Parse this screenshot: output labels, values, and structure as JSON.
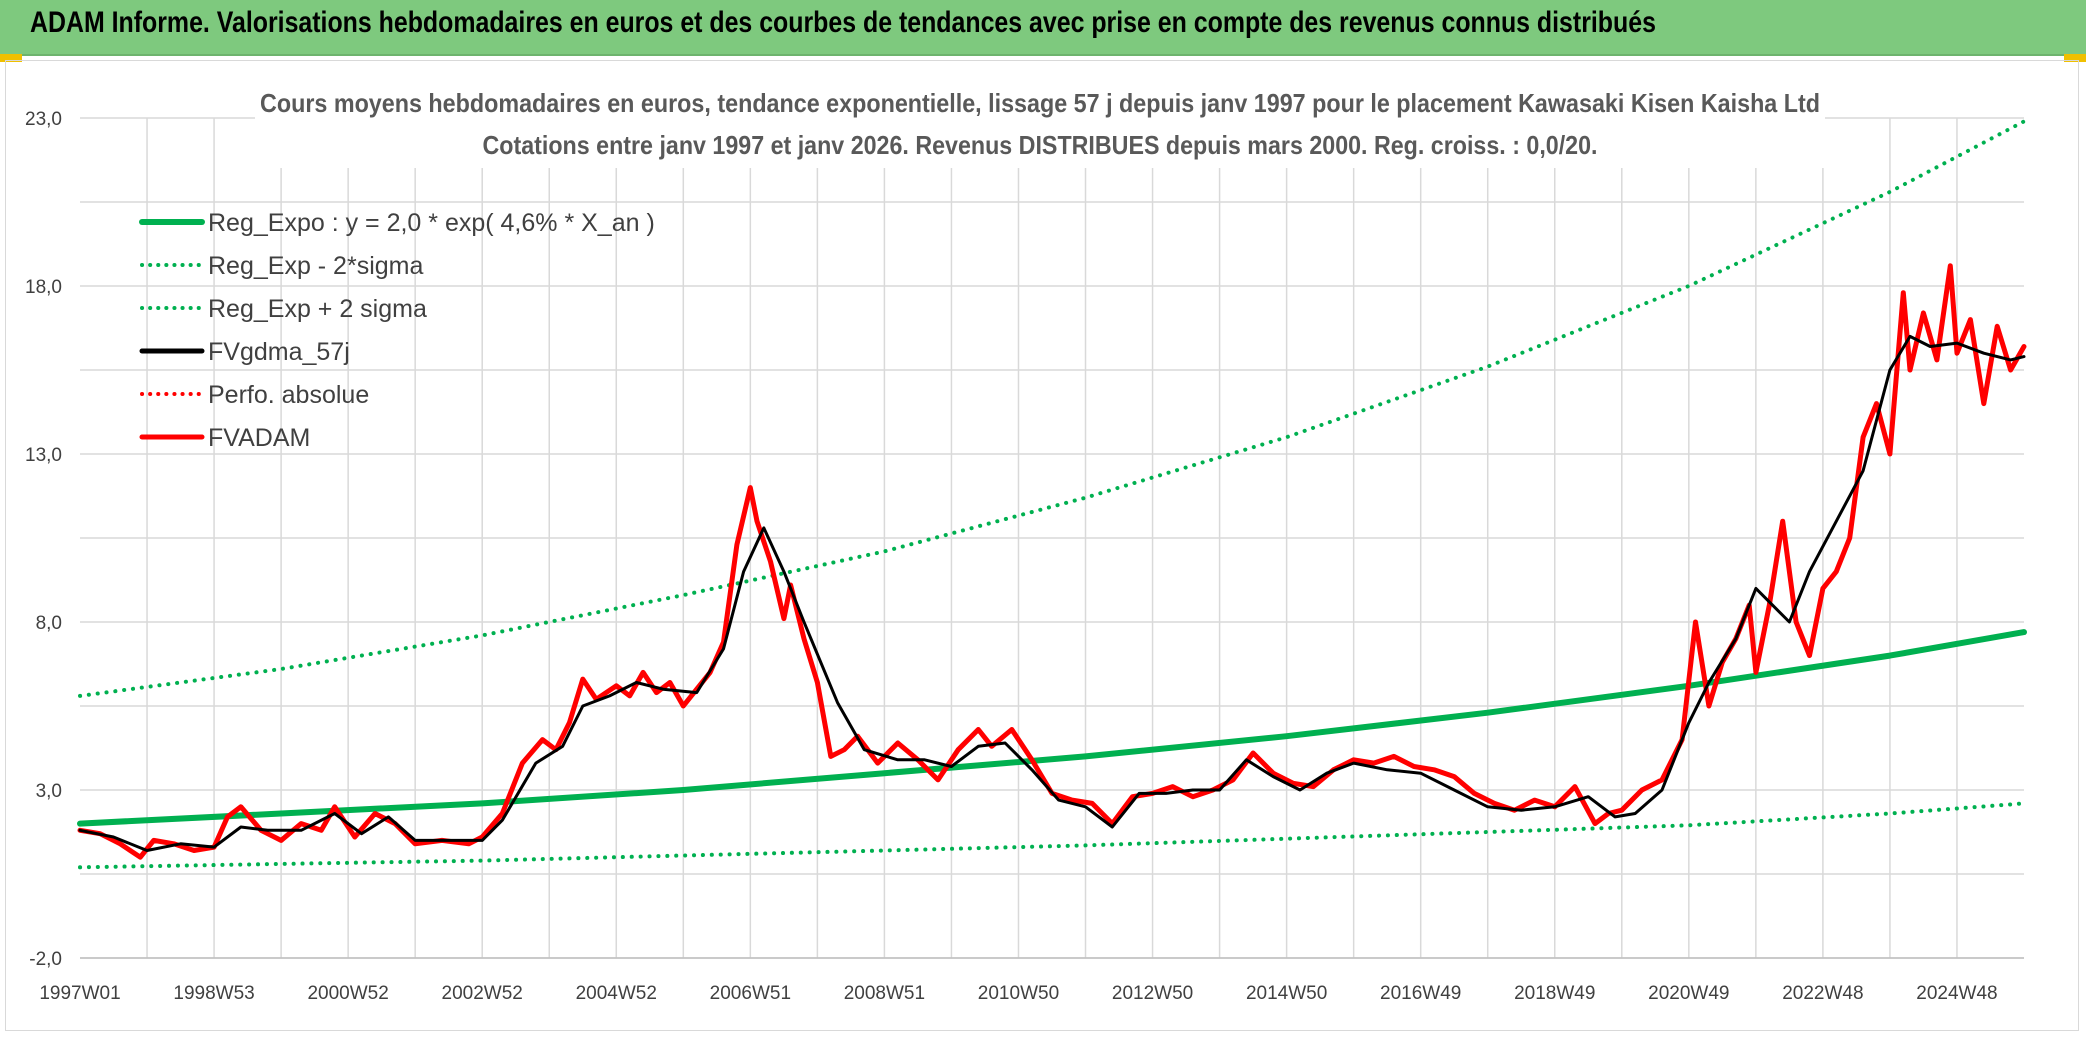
{
  "header": {
    "title": "ADAM Informe. Valorisations hebdomadaires en euros et des courbes de tendances avec prise en compte des revenus connus distribués"
  },
  "chart_data": {
    "type": "line",
    "title": "Cours moyens hebdomadaires en euros, tendance exponentielle, lissage 57 j depuis janv 1997 pour le placement Kawasaki Kisen Kaisha Ltd",
    "subtitle": "Cotations entre janv 1997 et janv 2026. Revenus DISTRIBUES depuis mars 2000. Reg. croiss. : 0,0/20.",
    "xlabel": "",
    "ylabel": "",
    "ylim": [
      -2,
      23
    ],
    "xlim": [
      1997.0,
      2026.0
    ],
    "y_ticks": [
      "-2,0",
      "3,0",
      "8,0",
      "13,0",
      "18,0",
      "23,0"
    ],
    "y_tick_values": [
      -2,
      3,
      8,
      13,
      18,
      23
    ],
    "x_ticks": [
      "1997W01",
      "1998W53",
      "2000W52",
      "2002W52",
      "2004W52",
      "2006W51",
      "2008W51",
      "2010W50",
      "2012W50",
      "2014W50",
      "2016W49",
      "2018W49",
      "2020W49",
      "2022W48",
      "2024W48"
    ],
    "x_tick_values": [
      1997.0,
      1999.0,
      2001.0,
      2003.0,
      2005.0,
      2007.0,
      2009.0,
      2011.0,
      2013.0,
      2015.0,
      2017.0,
      2019.0,
      2021.0,
      2023.0,
      2025.0
    ],
    "grid": true,
    "legend_position": "top-left",
    "series": [
      {
        "name": "Reg_Expo : y = 2,0 * exp( 4,6% *  X_an )",
        "color": "#00b050",
        "style": "solid",
        "width": 6,
        "x": [
          1997.0,
          2000.0,
          2003.0,
          2006.0,
          2009.0,
          2012.0,
          2015.0,
          2018.0,
          2021.0,
          2024.0,
          2026.0
        ],
        "y": [
          2.0,
          2.3,
          2.6,
          3.0,
          3.5,
          4.0,
          4.6,
          5.3,
          6.1,
          7.0,
          7.7
        ]
      },
      {
        "name": "Reg_Exp - 2*sigma",
        "color": "#00b050",
        "style": "dotted",
        "width": 4,
        "x": [
          1997.0,
          2000.0,
          2003.0,
          2006.0,
          2009.0,
          2012.0,
          2015.0,
          2018.0,
          2021.0,
          2024.0,
          2026.0
        ],
        "y": [
          0.7,
          0.8,
          0.9,
          1.05,
          1.2,
          1.35,
          1.55,
          1.75,
          1.95,
          2.3,
          2.6
        ]
      },
      {
        "name": "Reg_Exp + 2 sigma",
        "color": "#00b050",
        "style": "dotted",
        "width": 4,
        "x": [
          1997.0,
          2000.0,
          2003.0,
          2006.0,
          2009.0,
          2012.0,
          2015.0,
          2018.0,
          2021.0,
          2024.0,
          2026.0
        ],
        "y": [
          5.8,
          6.6,
          7.6,
          8.8,
          10.1,
          11.7,
          13.5,
          15.6,
          18.0,
          20.8,
          22.9
        ]
      },
      {
        "name": "FVgdma_57j",
        "color": "#000000",
        "style": "solid",
        "width": 3,
        "x": [
          1997.0,
          1997.5,
          1998.0,
          1998.5,
          1999.0,
          1999.4,
          1999.8,
          2000.3,
          2000.8,
          2001.2,
          2001.6,
          2002.0,
          2002.5,
          2003.0,
          2003.3,
          2003.8,
          2004.2,
          2004.5,
          2004.9,
          2005.3,
          2005.7,
          2006.2,
          2006.6,
          2006.9,
          2007.2,
          2007.5,
          2007.8,
          2008.3,
          2008.7,
          2009.2,
          2009.6,
          2010.0,
          2010.4,
          2010.8,
          2011.2,
          2011.6,
          2012.0,
          2012.4,
          2012.8,
          2013.2,
          2013.6,
          2014.0,
          2014.4,
          2014.8,
          2015.2,
          2015.6,
          2016.0,
          2016.5,
          2017.0,
          2017.5,
          2018.0,
          2018.5,
          2019.0,
          2019.5,
          2019.9,
          2020.2,
          2020.6,
          2021.0,
          2021.3,
          2021.7,
          2022.0,
          2022.5,
          2022.8,
          2023.2,
          2023.6,
          2024.0,
          2024.3,
          2024.6,
          2025.0,
          2025.4,
          2025.8,
          2026.0
        ],
        "y": [
          1.8,
          1.6,
          1.2,
          1.4,
          1.3,
          1.9,
          1.8,
          1.8,
          2.3,
          1.7,
          2.2,
          1.5,
          1.5,
          1.5,
          2.1,
          3.8,
          4.3,
          5.5,
          5.8,
          6.2,
          6.0,
          5.9,
          7.2,
          9.5,
          10.8,
          9.5,
          8.0,
          5.6,
          4.2,
          3.9,
          3.9,
          3.7,
          4.3,
          4.4,
          3.6,
          2.7,
          2.5,
          1.9,
          2.9,
          2.9,
          3.0,
          3.0,
          3.9,
          3.4,
          3.0,
          3.5,
          3.8,
          3.6,
          3.5,
          3.0,
          2.5,
          2.4,
          2.5,
          2.8,
          2.2,
          2.3,
          3.0,
          5.0,
          6.2,
          7.5,
          9.0,
          8.0,
          9.5,
          11.0,
          12.5,
          15.5,
          16.5,
          16.2,
          16.3,
          16.0,
          15.8,
          15.9
        ]
      },
      {
        "name": "Perfo. absolue",
        "color": "#ff0000",
        "style": "dotted",
        "width": 3,
        "x": [],
        "y": []
      },
      {
        "name": "FVADAM",
        "color": "#ff0000",
        "style": "solid",
        "width": 5,
        "x": [
          1997.0,
          1997.3,
          1997.6,
          1997.9,
          1998.1,
          1998.4,
          1998.7,
          1999.0,
          1999.2,
          1999.4,
          1999.7,
          2000.0,
          2000.3,
          2000.6,
          2000.8,
          2001.1,
          2001.4,
          2001.7,
          2002.0,
          2002.4,
          2002.8,
          2003.0,
          2003.3,
          2003.6,
          2003.9,
          2004.1,
          2004.3,
          2004.5,
          2004.7,
          2005.0,
          2005.2,
          2005.4,
          2005.6,
          2005.8,
          2006.0,
          2006.2,
          2006.4,
          2006.6,
          2006.8,
          2007.0,
          2007.1,
          2007.3,
          2007.5,
          2007.6,
          2007.8,
          2008.0,
          2008.2,
          2008.4,
          2008.6,
          2008.9,
          2009.2,
          2009.5,
          2009.8,
          2010.1,
          2010.4,
          2010.6,
          2010.9,
          2011.2,
          2011.5,
          2011.8,
          2012.1,
          2012.4,
          2012.7,
          2013.0,
          2013.3,
          2013.6,
          2013.9,
          2014.2,
          2014.5,
          2014.8,
          2015.1,
          2015.4,
          2015.7,
          2016.0,
          2016.3,
          2016.6,
          2016.9,
          2017.2,
          2017.5,
          2017.8,
          2018.1,
          2018.4,
          2018.7,
          2019.0,
          2019.3,
          2019.6,
          2019.8,
          2020.0,
          2020.3,
          2020.6,
          2020.9,
          2021.1,
          2021.3,
          2021.5,
          2021.7,
          2021.9,
          2022.0,
          2022.2,
          2022.4,
          2022.6,
          2022.8,
          2023.0,
          2023.2,
          2023.4,
          2023.6,
          2023.8,
          2024.0,
          2024.2,
          2024.3,
          2024.5,
          2024.7,
          2024.9,
          2025.0,
          2025.2,
          2025.4,
          2025.6,
          2025.8,
          2026.0
        ],
        "y": [
          1.8,
          1.7,
          1.4,
          1.0,
          1.5,
          1.4,
          1.2,
          1.3,
          2.2,
          2.5,
          1.8,
          1.5,
          2.0,
          1.8,
          2.5,
          1.6,
          2.3,
          2.0,
          1.4,
          1.5,
          1.4,
          1.6,
          2.3,
          3.8,
          4.5,
          4.2,
          5.0,
          6.3,
          5.7,
          6.1,
          5.8,
          6.5,
          5.9,
          6.2,
          5.5,
          6.0,
          6.5,
          7.4,
          10.3,
          12.0,
          11.0,
          9.8,
          8.1,
          9.1,
          7.5,
          6.2,
          4.0,
          4.2,
          4.6,
          3.8,
          4.4,
          3.9,
          3.3,
          4.2,
          4.8,
          4.3,
          4.8,
          3.9,
          2.9,
          2.7,
          2.6,
          2.0,
          2.8,
          2.9,
          3.1,
          2.8,
          3.0,
          3.3,
          4.1,
          3.5,
          3.2,
          3.1,
          3.6,
          3.9,
          3.8,
          4.0,
          3.7,
          3.6,
          3.4,
          2.9,
          2.6,
          2.4,
          2.7,
          2.5,
          3.1,
          2.0,
          2.3,
          2.4,
          3.0,
          3.3,
          4.5,
          8.0,
          5.5,
          6.8,
          7.5,
          8.5,
          6.5,
          8.5,
          11.0,
          8.0,
          7.0,
          9.0,
          9.5,
          10.5,
          13.5,
          14.5,
          13.0,
          17.8,
          15.5,
          17.2,
          15.8,
          18.6,
          16.0,
          17.0,
          14.5,
          16.8,
          15.5,
          16.2
        ]
      }
    ]
  }
}
